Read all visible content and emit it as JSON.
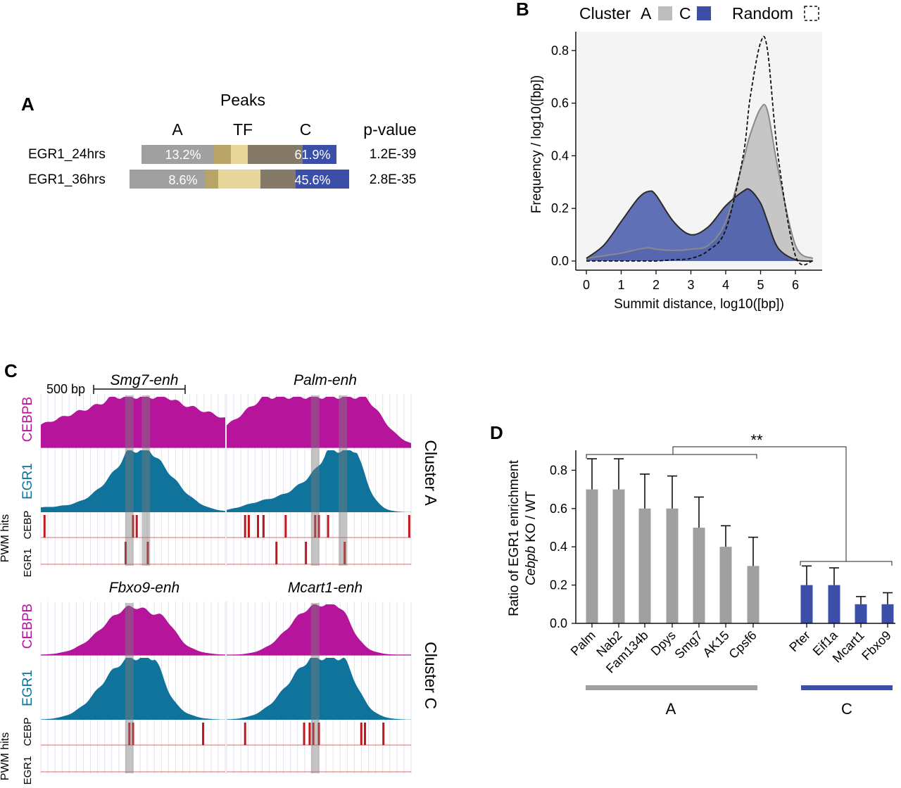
{
  "panels": {
    "a": {
      "letter": "A",
      "header": "Peaks",
      "col_a": "A",
      "col_tf": "TF",
      "col_c": "C",
      "col_p": "p-value",
      "rows": [
        {
          "label": "EGR1_24hrs",
          "a_pct": "13.2%",
          "c_pct": "61.9%",
          "p": "1.2E-39"
        },
        {
          "label": "EGR1_36hrs",
          "a_pct": "8.6%",
          "c_pct": "45.6%",
          "p": "2.8E-35"
        }
      ]
    },
    "b": {
      "letter": "B",
      "legend_cluster": "Cluster",
      "legend_a": "A",
      "legend_c": "C",
      "legend_random": "Random",
      "xlabel": "Summit distance, log10([bp])",
      "ylabel": "Frequency / log10([bp])"
    },
    "c": {
      "letter": "C",
      "scale": "500 bp",
      "loci": [
        "Smg7-enh",
        "Palm-enh",
        "Fbxo9-enh",
        "Mcart1-enh"
      ],
      "track_cebpb": "CEBPB",
      "track_egr1": "EGR1",
      "pwm_label": "PWM hits",
      "pwm_cebp": "CEBP",
      "pwm_egr1": "EGR1",
      "cluster_a": "Cluster A",
      "cluster_c": "Cluster C"
    },
    "d": {
      "letter": "D",
      "ylabel_1": "Ratio of EGR1 enrichment",
      "ylabel_2a": "Cebpb",
      "ylabel_2b": " KO / WT",
      "sig": "**",
      "group_a": "A",
      "group_c": "C"
    }
  },
  "colors": {
    "cluster_a": "#a0a0a0",
    "cluster_c": "#3b4fa8",
    "tf_dark": "#b9a467",
    "tf_light": "#e8d59a",
    "between": "#857a68",
    "cebpb": "#b5149b",
    "egr1": "#0f739c",
    "pwm": "#c0171e"
  },
  "chart_data": [
    {
      "type": "table",
      "title": "Peaks",
      "columns": [
        "",
        "A",
        "TF",
        "C",
        "p-value"
      ],
      "rows": [
        [
          "EGR1_24hrs",
          "13.2%",
          "",
          "61.9%",
          "1.2E-39"
        ],
        [
          "EGR1_36hrs",
          "8.6%",
          "",
          "45.6%",
          "2.8E-35"
        ]
      ]
    },
    {
      "type": "area",
      "xlabel": "Summit distance, log10([bp])",
      "ylabel": "Frequency / log10([bp])",
      "xlim": [
        -0.2,
        6.7
      ],
      "ylim": [
        0,
        0.85
      ],
      "xticks": [
        0,
        1,
        2,
        3,
        4,
        5,
        6
      ],
      "yticks": [
        0.0,
        0.2,
        0.4,
        0.6,
        0.8
      ],
      "legend": "top",
      "x": [
        0,
        0.5,
        1,
        1.5,
        1.8,
        2,
        2.5,
        3,
        3.5,
        4,
        4.5,
        4.7,
        5,
        5.2,
        5.5,
        6,
        6.5
      ],
      "series": [
        {
          "name": "A",
          "values": [
            0.01,
            0.02,
            0.03,
            0.045,
            0.05,
            0.045,
            0.04,
            0.045,
            0.06,
            0.15,
            0.38,
            0.48,
            0.58,
            0.57,
            0.35,
            0.06,
            0.01
          ]
        },
        {
          "name": "C",
          "values": [
            0.01,
            0.06,
            0.15,
            0.24,
            0.265,
            0.25,
            0.15,
            0.1,
            0.13,
            0.21,
            0.265,
            0.27,
            0.22,
            0.15,
            0.05,
            0.005,
            0
          ]
        },
        {
          "name": "Random",
          "values": [
            0,
            0,
            0,
            0,
            0,
            0,
            0.005,
            0.01,
            0.04,
            0.12,
            0.4,
            0.62,
            0.83,
            0.8,
            0.4,
            0.02,
            0
          ]
        }
      ]
    },
    {
      "type": "bar",
      "ylabel": "Ratio of EGR1 enrichment Cebpb KO / WT",
      "ylim": [
        0,
        0.9
      ],
      "yticks": [
        0.0,
        0.2,
        0.4,
        0.6,
        0.8
      ],
      "categories": [
        "Palm",
        "Nab2",
        "Fam134b",
        "Dpys",
        "Smg7",
        "AK15",
        "Cpsf6",
        "Pter",
        "Eif1a",
        "Mcart1",
        "Fbxo9"
      ],
      "values": [
        0.7,
        0.7,
        0.6,
        0.6,
        0.5,
        0.4,
        0.3,
        0.2,
        0.2,
        0.1,
        0.1
      ],
      "errors": [
        0.16,
        0.16,
        0.18,
        0.17,
        0.16,
        0.11,
        0.15,
        0.1,
        0.09,
        0.04,
        0.06
      ],
      "groups": {
        "A": [
          "Palm",
          "Nab2",
          "Fam134b",
          "Dpys",
          "Smg7",
          "AK15",
          "Cpsf6"
        ],
        "C": [
          "Pter",
          "Eif1a",
          "Mcart1",
          "Fbxo9"
        ]
      },
      "annotations": [
        "**"
      ]
    }
  ]
}
